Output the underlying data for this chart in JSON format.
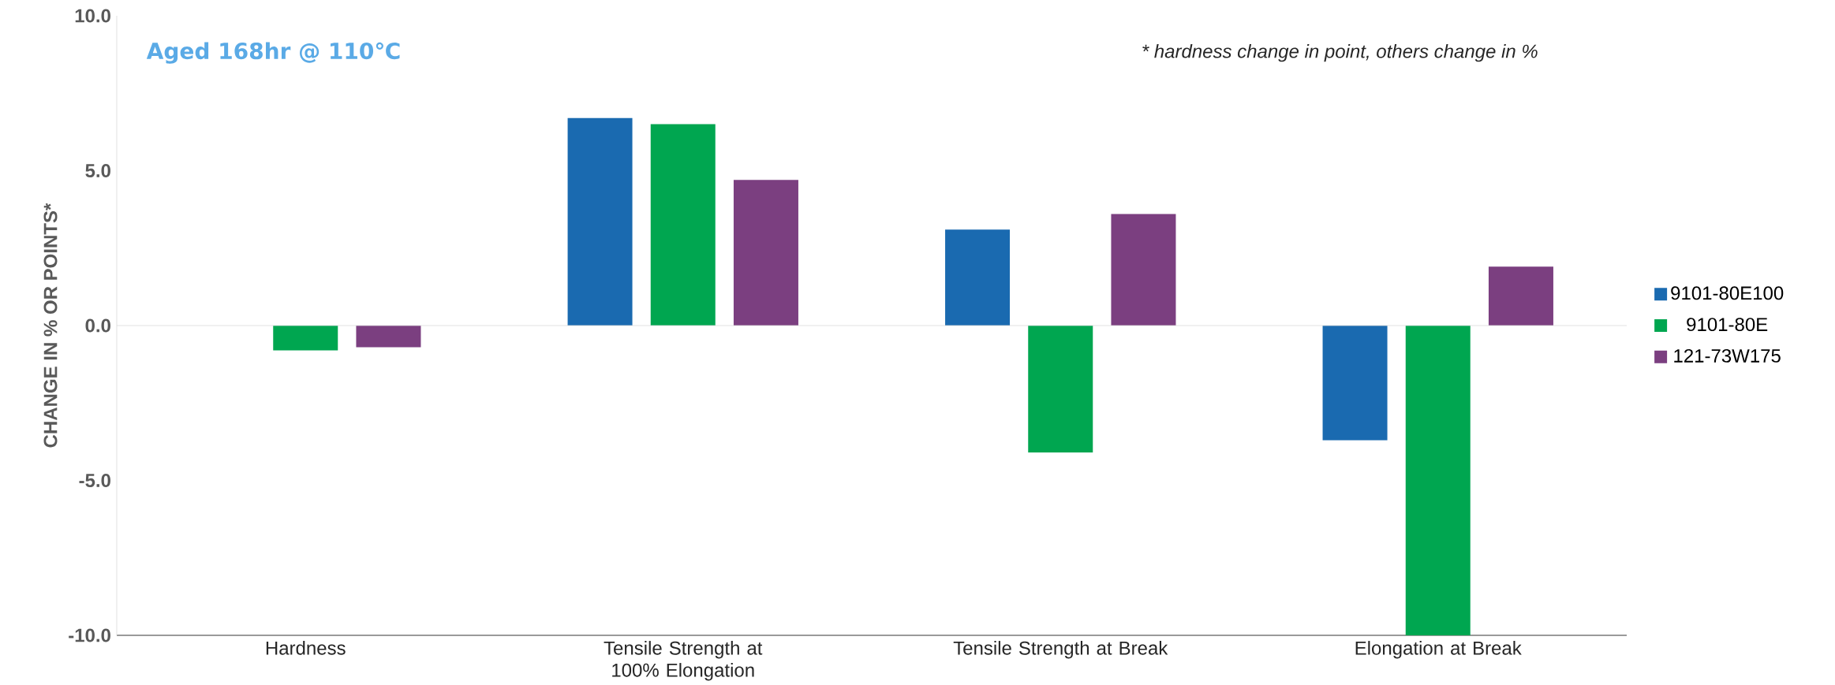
{
  "chart_data": {
    "type": "bar",
    "title": "Aged 168hr @ 110℃",
    "ylabel": "CHANGE IN % OR POINTS*",
    "annotations": [
      "* hardness change in point, others change in %"
    ],
    "categories": [
      "Hardness",
      "Tensile Strength at 100% Elongation",
      "Tensile Strength at Break",
      "Elongation at Break"
    ],
    "series": [
      {
        "name": "9101-80E100",
        "color": "#1a6ab0",
        "values": [
          0,
          6.7,
          3.1,
          -3.7
        ]
      },
      {
        "name": "9101-80E",
        "color": "#00a650",
        "values": [
          -0.8,
          6.5,
          -4.1,
          -10.0
        ]
      },
      {
        "name": "121-73W175",
        "color": "#7b3f80",
        "values": [
          -0.7,
          4.7,
          3.6,
          1.9
        ]
      }
    ],
    "ylim": [
      -10,
      10
    ],
    "yticks": [
      {
        "value": -10,
        "label": "-10.0"
      },
      {
        "value": -5,
        "label": "-5.0"
      },
      {
        "value": 0,
        "label": "0.0"
      },
      {
        "value": 5,
        "label": "5.0"
      },
      {
        "value": 10,
        "label": "10.0"
      }
    ],
    "legend": "right"
  }
}
